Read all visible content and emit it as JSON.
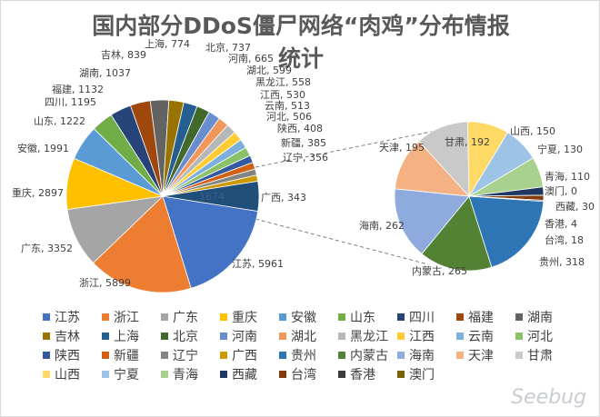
{
  "chart_data": {
    "type": "pie",
    "subtype": "pie-of-pie",
    "title_line1": "国内部分DDoS僵尸网络“肉鸡”分布情报",
    "title_line2": "统计",
    "primary": [
      {
        "name": "江苏",
        "value": 5961,
        "color": "#4472C4"
      },
      {
        "name": "浙江",
        "value": 5899,
        "color": "#ED7D31"
      },
      {
        "name": "广东",
        "value": 3352,
        "color": "#A5A5A5"
      },
      {
        "name": "重庆",
        "value": 2897,
        "color": "#FFC000"
      },
      {
        "name": "安徽",
        "value": 1991,
        "color": "#5B9BD5"
      },
      {
        "name": "山东",
        "value": 1222,
        "color": "#70AD47"
      },
      {
        "name": "四川",
        "value": 1195,
        "color": "#264478"
      },
      {
        "name": "福建",
        "value": 1132,
        "color": "#9E480E"
      },
      {
        "name": "湖南",
        "value": 1037,
        "color": "#636363"
      },
      {
        "name": "吉林",
        "value": 839,
        "color": "#997300"
      },
      {
        "name": "上海",
        "value": 774,
        "color": "#255E91"
      },
      {
        "name": "北京",
        "value": 737,
        "color": "#43682B"
      },
      {
        "name": "河南",
        "value": 665,
        "color": "#698ED0"
      },
      {
        "name": "湖北",
        "value": 599,
        "color": "#F1975A"
      },
      {
        "name": "黑龙江",
        "value": 558,
        "color": "#B7B7B7"
      },
      {
        "name": "江西",
        "value": 530,
        "color": "#FFCD33"
      },
      {
        "name": "云南",
        "value": 513,
        "color": "#7CAFDD"
      },
      {
        "name": "河北",
        "value": 506,
        "color": "#8CC168"
      },
      {
        "name": "陕西",
        "value": 408,
        "color": "#335AA1"
      },
      {
        "name": "新疆",
        "value": 385,
        "color": "#D26012"
      },
      {
        "name": "辽宁",
        "value": 356,
        "color": "#848484"
      },
      {
        "name": "广西",
        "value": 343,
        "color": "#CC9A00"
      }
    ],
    "other": {
      "label": "1674",
      "value": 1674,
      "color": "#1F4E79"
    },
    "secondary": [
      {
        "name": "贵州",
        "value": 318,
        "color": "#2E75B6"
      },
      {
        "name": "内蒙古",
        "value": 265,
        "color": "#548235"
      },
      {
        "name": "海南",
        "value": 262,
        "color": "#8FAADC"
      },
      {
        "name": "天津",
        "value": 195,
        "color": "#F4B183"
      },
      {
        "name": "甘肃",
        "value": 192,
        "color": "#C9C9C9"
      },
      {
        "name": "山西",
        "value": 150,
        "color": "#FFD966"
      },
      {
        "name": "宁夏",
        "value": 130,
        "color": "#9DC3E6"
      },
      {
        "name": "青海",
        "value": 110,
        "color": "#A9D18E"
      },
      {
        "name": "西藏",
        "value": 30,
        "color": "#203864"
      },
      {
        "name": "台湾",
        "value": 18,
        "color": "#843C0C"
      },
      {
        "name": "香港",
        "value": 4,
        "color": "#3B3B3B"
      },
      {
        "name": "澳门",
        "value": 0,
        "color": "#7F6000"
      }
    ],
    "legend_placement": "bottom"
  },
  "watermark": "Seebug"
}
